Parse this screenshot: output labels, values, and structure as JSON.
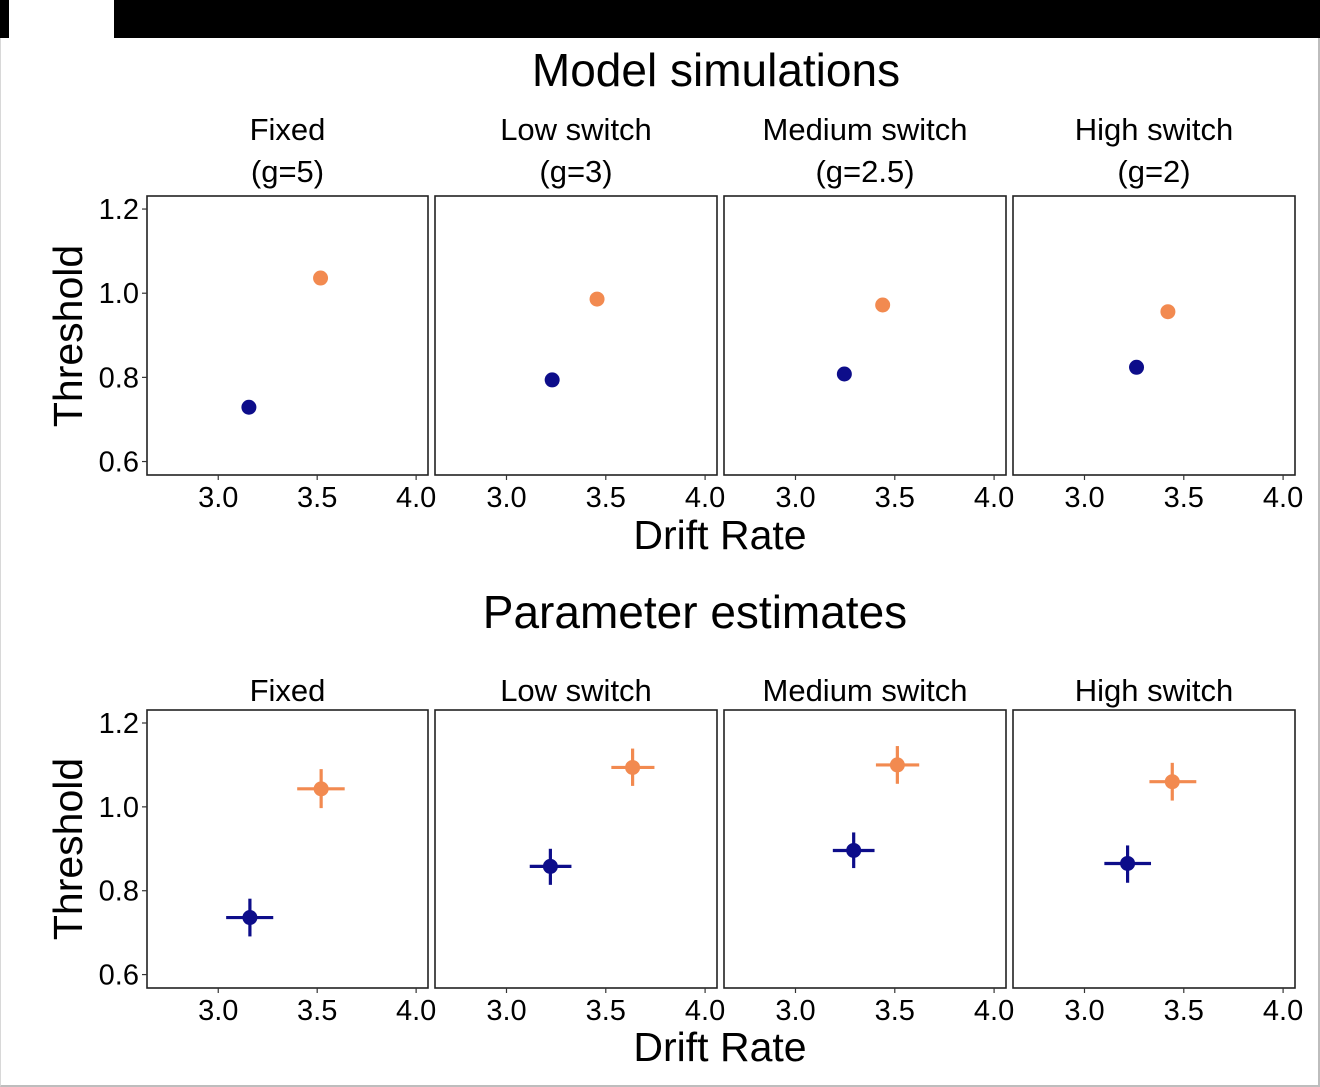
{
  "colors": {
    "orange": "#F28A50",
    "navy": "#0D0D8A",
    "panel_border": "#222222",
    "topbar": "#000000"
  },
  "chart_data": [
    {
      "type": "scatter",
      "title": "Model simulations",
      "xlabel": "Drift Rate",
      "ylabel": "Threshold",
      "xlim": [
        2.64,
        4.06
      ],
      "ylim": [
        0.568,
        1.231
      ],
      "xticks": [
        3.0,
        3.5,
        4.0
      ],
      "xtick_labels": [
        "3.0",
        "3.5",
        "4.0"
      ],
      "yticks": [
        0.6,
        0.8,
        1.0,
        1.2
      ],
      "ytick_labels": [
        "0.6",
        "0.8",
        "1.0",
        "1.2"
      ],
      "grid": false,
      "facets": [
        {
          "label_line1": "Fixed",
          "label_line2": "(g=5)",
          "points": [
            {
              "series": "navy",
              "x": 3.155,
              "y": 0.729
            },
            {
              "series": "orange",
              "x": 3.517,
              "y": 1.036
            }
          ]
        },
        {
          "label_line1": "Low switch",
          "label_line2": "(g=3)",
          "points": [
            {
              "series": "navy",
              "x": 3.23,
              "y": 0.794
            },
            {
              "series": "orange",
              "x": 3.456,
              "y": 0.986
            }
          ]
        },
        {
          "label_line1": "Medium switch",
          "label_line2": "(g=2.5)",
          "points": [
            {
              "series": "navy",
              "x": 3.246,
              "y": 0.808
            },
            {
              "series": "orange",
              "x": 3.439,
              "y": 0.972
            }
          ]
        },
        {
          "label_line1": "High switch",
          "label_line2": "(g=2)",
          "points": [
            {
              "series": "navy",
              "x": 3.262,
              "y": 0.824
            },
            {
              "series": "orange",
              "x": 3.42,
              "y": 0.956
            }
          ]
        }
      ]
    },
    {
      "type": "scatter",
      "title": "Parameter estimates",
      "xlabel": "Drift Rate",
      "ylabel": "Threshold",
      "xlim": [
        2.64,
        4.06
      ],
      "ylim": [
        0.568,
        1.231
      ],
      "xticks": [
        3.0,
        3.5,
        4.0
      ],
      "xtick_labels": [
        "3.0",
        "3.5",
        "4.0"
      ],
      "yticks": [
        0.6,
        0.8,
        1.0,
        1.2
      ],
      "ytick_labels": [
        "0.6",
        "0.8",
        "1.0",
        "1.2"
      ],
      "grid": false,
      "error_bars": true,
      "facets": [
        {
          "label_line1": "Fixed",
          "label_line2": "",
          "points": [
            {
              "series": "navy",
              "x": 3.16,
              "y": 0.736,
              "xmin": 3.04,
              "xmax": 3.278,
              "ymin": 0.691,
              "ymax": 0.781
            },
            {
              "series": "orange",
              "x": 3.52,
              "y": 1.043,
              "xmin": 3.399,
              "xmax": 3.639,
              "ymin": 0.997,
              "ymax": 1.09
            }
          ]
        },
        {
          "label_line1": "Low switch",
          "label_line2": "",
          "points": [
            {
              "series": "navy",
              "x": 3.221,
              "y": 0.858,
              "xmin": 3.117,
              "xmax": 3.327,
              "ymin": 0.814,
              "ymax": 0.9
            },
            {
              "series": "orange",
              "x": 3.635,
              "y": 1.094,
              "xmin": 3.528,
              "xmax": 3.745,
              "ymin": 1.05,
              "ymax": 1.139
            }
          ]
        },
        {
          "label_line1": "Medium switch",
          "label_line2": "",
          "points": [
            {
              "series": "navy",
              "x": 3.293,
              "y": 0.896,
              "xmin": 3.188,
              "xmax": 3.398,
              "ymin": 0.854,
              "ymax": 0.939
            },
            {
              "series": "orange",
              "x": 3.513,
              "y": 1.1,
              "xmin": 3.405,
              "xmax": 3.623,
              "ymin": 1.055,
              "ymax": 1.145
            }
          ]
        },
        {
          "label_line1": "High switch",
          "label_line2": "",
          "points": [
            {
              "series": "navy",
              "x": 3.217,
              "y": 0.865,
              "xmin": 3.1,
              "xmax": 3.335,
              "ymin": 0.819,
              "ymax": 0.908
            },
            {
              "series": "orange",
              "x": 3.442,
              "y": 1.06,
              "xmin": 3.327,
              "xmax": 3.563,
              "ymin": 1.015,
              "ymax": 1.105
            }
          ]
        }
      ]
    }
  ]
}
